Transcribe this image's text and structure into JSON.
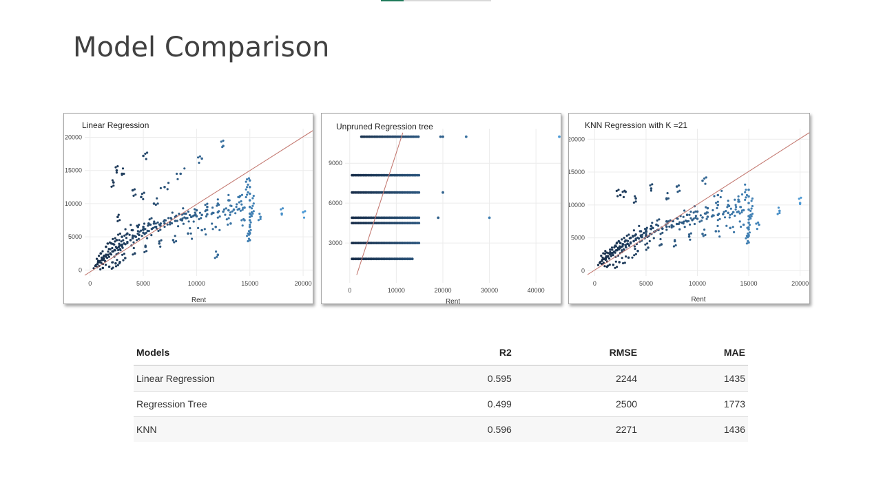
{
  "slide": {
    "title": "Model Comparison"
  },
  "chart_data": [
    {
      "type": "scatter",
      "title": "Linear Regression",
      "xlabel": "Rent",
      "ylabel": "",
      "xlim": [
        -500,
        20900
      ],
      "ylim": [
        -900,
        21300
      ],
      "xticks": [
        0,
        5000,
        10000,
        15000,
        20000
      ],
      "yticks": [
        0,
        5000,
        10000,
        15000,
        20000
      ],
      "reference_line": {
        "x": [
          -500,
          20900
        ],
        "y": [
          -800,
          21000
        ]
      },
      "grid": true,
      "legend": "none",
      "point_color_range": [
        "#172c47",
        "#4e9bd6"
      ],
      "series": [
        {
          "x": [
            500,
            700,
            900,
            1100,
            1300,
            1500,
            1700,
            1900,
            2100,
            2300,
            2500,
            2700,
            3000,
            3200,
            3500,
            3800,
            4000,
            4300,
            4600,
            5000,
            5400,
            5800,
            6200,
            6600,
            7000,
            7500,
            8000,
            8500,
            9000,
            9500,
            10000,
            10500,
            11000,
            11500,
            12000,
            12500,
            13000,
            13500,
            14000,
            14500,
            15000,
            15000,
            15000,
            15000,
            15000,
            15000,
            15000,
            15000,
            15000,
            15000,
            16000,
            18000,
            20000,
            1000,
            1500,
            2000,
            2500,
            3000,
            3500,
            4000,
            4500,
            5000,
            5500,
            6000,
            7000,
            8000,
            9000,
            10000,
            11000,
            12000,
            13000,
            14000,
            1200,
            1800,
            2400,
            2800,
            3300,
            4200,
            5200,
            6500,
            7800,
            9200,
            10500,
            11800,
            13200,
            14500,
            2200,
            2500,
            3000,
            4000,
            5000,
            7000,
            8500,
            10500,
            12000,
            12500,
            14000,
            2600,
            4800,
            6000
          ],
          "y": [
            600,
            900,
            1200,
            1500,
            1700,
            2000,
            2300,
            2500,
            2800,
            3000,
            3300,
            3500,
            3800,
            4000,
            4200,
            4500,
            4800,
            5000,
            5300,
            5600,
            5900,
            6200,
            6500,
            6700,
            7000,
            7200,
            7400,
            7600,
            7800,
            8000,
            8100,
            8300,
            8400,
            8600,
            8700,
            8800,
            9000,
            9100,
            9200,
            9400,
            4500,
            5500,
            6500,
            7500,
            8500,
            9500,
            10500,
            11500,
            12500,
            13500,
            8000,
            8500,
            8700,
            2500,
            3500,
            4000,
            4500,
            5000,
            5500,
            6000,
            6500,
            6500,
            7000,
            7000,
            7500,
            8000,
            8500,
            9000,
            9500,
            10000,
            10500,
            11000,
            300,
            500,
            1000,
            1200,
            1800,
            2500,
            3500,
            4000,
            4500,
            5500,
            6000,
            6500,
            7000,
            7500,
            13200,
            15000,
            14500,
            12000,
            17200,
            12500,
            14500,
            16800,
            2300,
            18700,
            11000,
            8000,
            11000,
            10000
          ]
        }
      ]
    },
    {
      "type": "scatter",
      "title": "Unpruned Regression tree",
      "xlabel": "Rent",
      "ylabel": "",
      "xlim": [
        -1000,
        45300
      ],
      "ylim": [
        0,
        11600
      ],
      "xticks": [
        0,
        10000,
        20000,
        30000,
        40000
      ],
      "yticks": [
        3000,
        6000,
        9000
      ],
      "reference_line": {
        "x": [
          1500,
          11400
        ],
        "y": [
          600,
          11300
        ]
      },
      "grid": true,
      "legend": "none",
      "point_color_range": [
        "#172c47",
        "#4e9bd6"
      ],
      "series": [
        {
          "bands": [
            11000,
            8100,
            6800,
            4900,
            4500,
            3000,
            1800
          ],
          "band_x_ranges": [
            [
              2500,
              15000
            ],
            [
              500,
              15000
            ],
            [
              500,
              15000
            ],
            [
              500,
              15000
            ],
            [
              500,
              15000
            ],
            [
              500,
              15000
            ],
            [
              500,
              13500
            ]
          ],
          "outliers": {
            "x": [
              19500,
              20000,
              25000,
              45000,
              20000,
              19000,
              30000
            ],
            "y": [
              11000,
              11000,
              11000,
              11000,
              6800,
              4900,
              4900
            ]
          }
        }
      ]
    },
    {
      "type": "scatter",
      "title": "KNN Regression with K =21",
      "xlabel": "Rent",
      "ylabel": "",
      "xlim": [
        -700,
        20900
      ],
      "ylim": [
        -800,
        21600
      ],
      "xticks": [
        0,
        5000,
        10000,
        15000,
        20000
      ],
      "yticks": [
        0,
        5000,
        10000,
        15000,
        20000
      ],
      "reference_line": {
        "x": [
          -700,
          20900
        ],
        "y": [
          -600,
          21000
        ]
      },
      "grid": true,
      "legend": "none",
      "point_color_range": [
        "#172c47",
        "#4e9bd6"
      ],
      "series": [
        {
          "x": [
            500,
            700,
            900,
            1100,
            1300,
            1500,
            1700,
            1900,
            2100,
            2300,
            2500,
            2700,
            3000,
            3200,
            3500,
            3800,
            4000,
            4300,
            4600,
            5000,
            5400,
            5800,
            6200,
            6600,
            7000,
            7500,
            8000,
            8500,
            9000,
            9500,
            10000,
            10500,
            11000,
            11500,
            12000,
            12500,
            13000,
            13500,
            14000,
            14500,
            15000,
            15000,
            15000,
            15000,
            15000,
            15000,
            15000,
            15000,
            15000,
            16000,
            18000,
            20000,
            1000,
            1500,
            2000,
            2500,
            3000,
            3500,
            4000,
            4500,
            5000,
            5500,
            6000,
            7000,
            8000,
            9000,
            10000,
            11000,
            12000,
            13000,
            14000,
            1200,
            1800,
            2400,
            3300,
            4200,
            5200,
            6500,
            7800,
            9200,
            10500,
            11800,
            13200,
            14500,
            2500,
            3000,
            4000,
            5500,
            7000,
            8000,
            10500,
            12000,
            14000
          ],
          "y": [
            1200,
            1500,
            1800,
            2000,
            2200,
            2500,
            2700,
            2900,
            3100,
            3300,
            3500,
            3700,
            3900,
            4100,
            4300,
            4500,
            4700,
            4900,
            5100,
            5300,
            5600,
            5900,
            6200,
            6400,
            6700,
            6900,
            7100,
            7300,
            7500,
            7700,
            7900,
            8100,
            8200,
            8400,
            8500,
            8600,
            8800,
            8900,
            9000,
            9200,
            4300,
            5300,
            6300,
            7300,
            8300,
            9300,
            10300,
            11300,
            12300,
            7000,
            9100,
            10300,
            2600,
            3200,
            3800,
            4200,
            4600,
            5000,
            5500,
            6000,
            6200,
            6800,
            7000,
            7500,
            8000,
            8500,
            9000,
            9500,
            10000,
            10000,
            10500,
            600,
            900,
            1300,
            2000,
            3000,
            3500,
            4000,
            4500,
            5200,
            5600,
            6000,
            6500,
            7000,
            11500,
            12000,
            11000,
            12500,
            11000,
            12800,
            13700,
            11500,
            10800
          ]
        }
      ]
    }
  ],
  "table": {
    "headers": {
      "model": "Models",
      "r2": "R2",
      "rmse": "RMSE",
      "mae": "MAE"
    },
    "rows": [
      {
        "model": "Linear Regression",
        "r2": "0.595",
        "rmse": "2244",
        "mae": "1435"
      },
      {
        "model": "Regression Tree",
        "r2": "0.499",
        "rmse": "2500",
        "mae": "1773"
      },
      {
        "model": "KNN",
        "r2": "0.596",
        "rmse": "2271",
        "mae": "1436"
      }
    ]
  }
}
